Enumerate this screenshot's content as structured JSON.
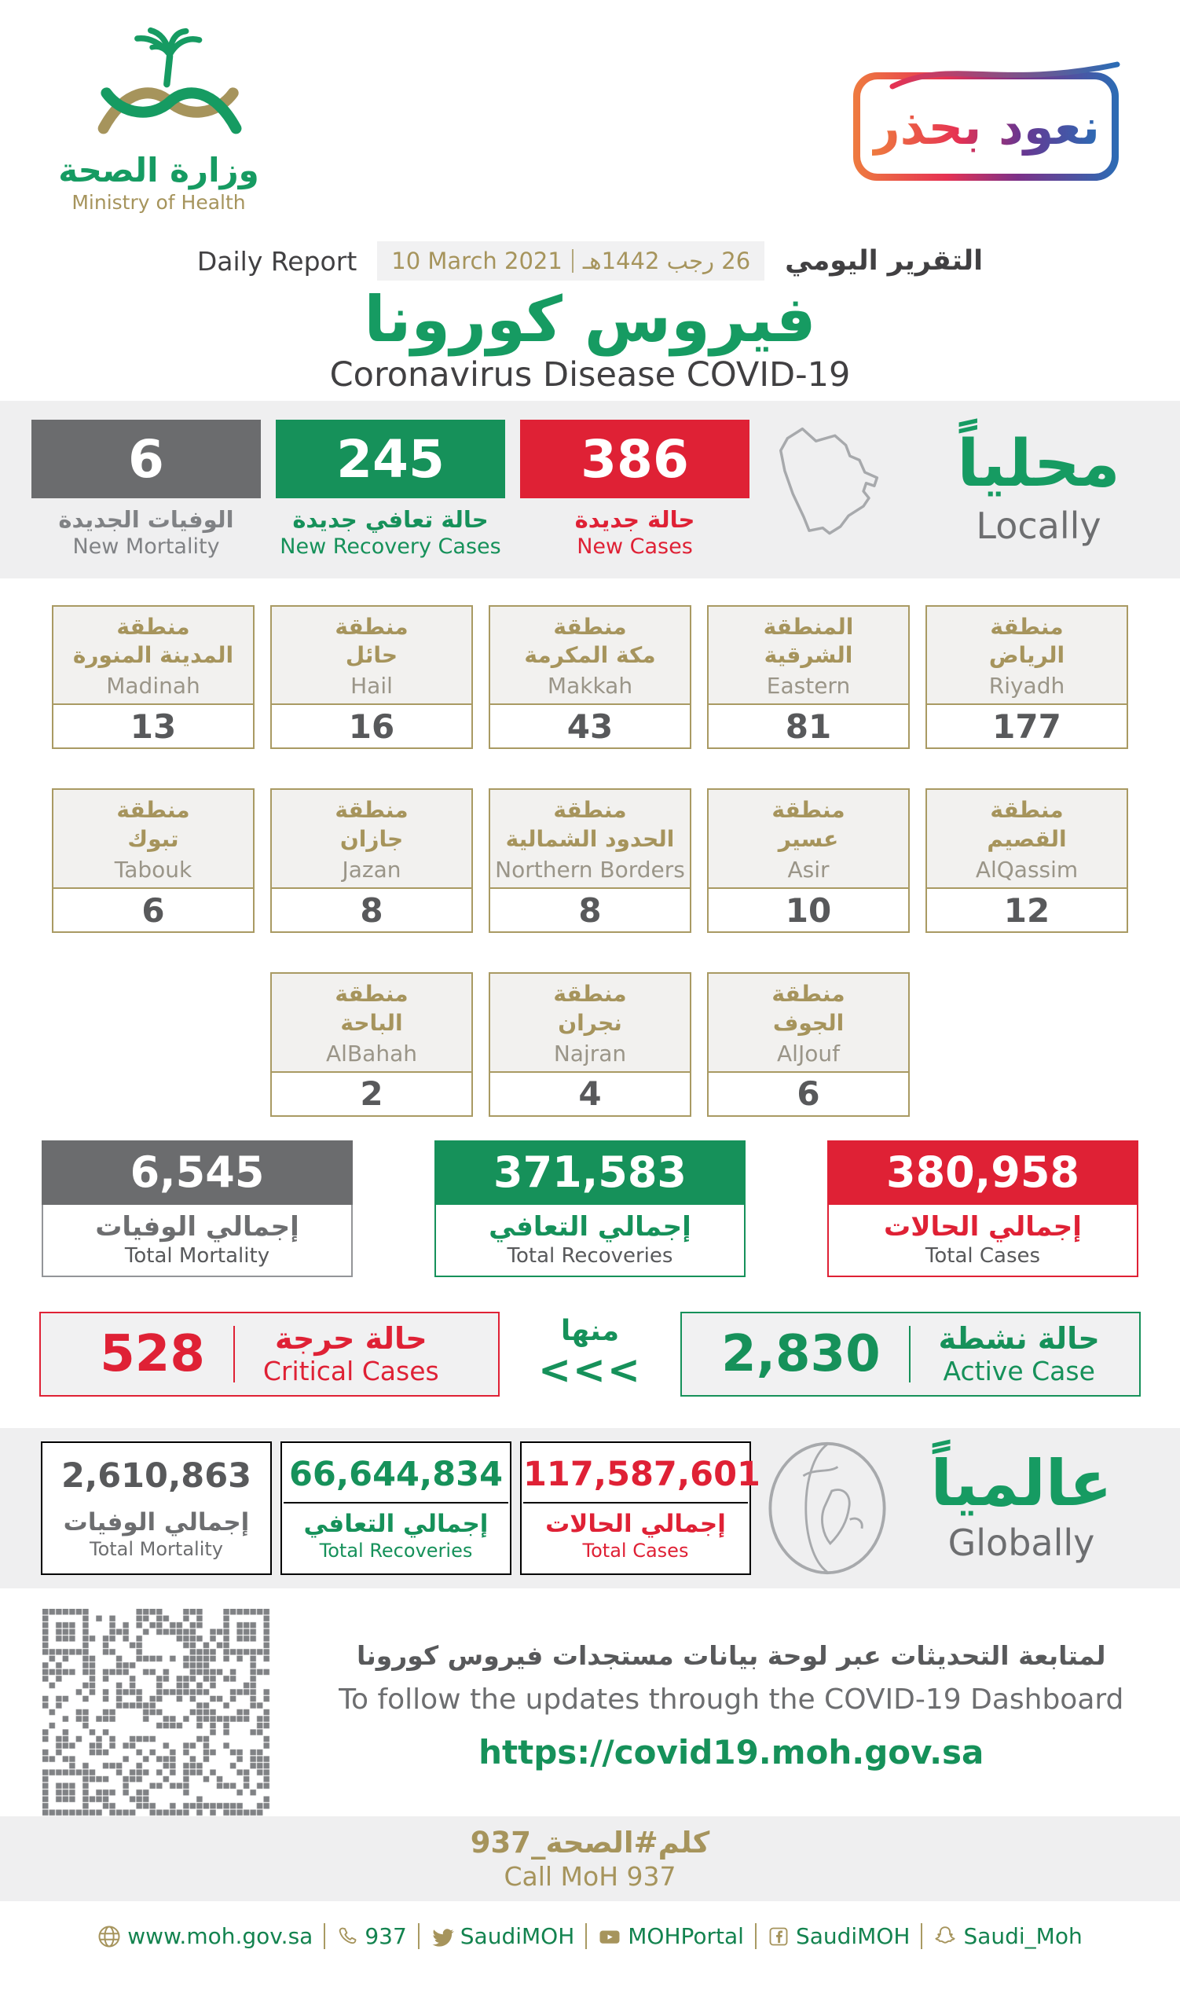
{
  "header": {
    "logo_ar": "وزارة الصحة",
    "logo_en": "Ministry of Health",
    "badge_text": "نعود بحذر",
    "report_label_en": "Daily Report",
    "report_label_ar": "التقرير اليومي",
    "date_en": "10 March 2021",
    "date_ar": "26 رجب 1442هـ",
    "title_ar": "فيروس كورونا",
    "title_en": "Coronavirus Disease COVID-19"
  },
  "locally": {
    "heading_ar": "محلياً",
    "heading_en": "Locally",
    "stats": [
      {
        "value": "6",
        "label_ar": "الوفيات الجديدة",
        "label_en": "New Mortality",
        "color": "#6b6c6e"
      },
      {
        "value": "245",
        "label_ar": "حالة تعافي جديدة",
        "label_en": "New Recovery Cases",
        "color": "#16915a"
      },
      {
        "value": "386",
        "label_ar": "حالة جديدة",
        "label_en": "New Cases",
        "color": "#df2135"
      }
    ]
  },
  "regions": {
    "rows": [
      [
        {
          "ar1": "منطقة",
          "ar2": "المدينة المنورة",
          "en": "Madinah",
          "value": "13"
        },
        {
          "ar1": "منطقة",
          "ar2": "حائل",
          "en": "Hail",
          "value": "16"
        },
        {
          "ar1": "منطقة",
          "ar2": "مكة المكرمة",
          "en": "Makkah",
          "value": "43"
        },
        {
          "ar1": "المنطقة",
          "ar2": "الشرقية",
          "en": "Eastern",
          "value": "81"
        },
        {
          "ar1": "منطقة",
          "ar2": "الرياض",
          "en": "Riyadh",
          "value": "177"
        }
      ],
      [
        {
          "ar1": "منطقة",
          "ar2": "تبوك",
          "en": "Tabouk",
          "value": "6"
        },
        {
          "ar1": "منطقة",
          "ar2": "جازان",
          "en": "Jazan",
          "value": "8"
        },
        {
          "ar1": "منطقة",
          "ar2": "الحدود الشمالية",
          "en": "Northern Borders",
          "value": "8"
        },
        {
          "ar1": "منطقة",
          "ar2": "عسير",
          "en": "Asir",
          "value": "10"
        },
        {
          "ar1": "منطقة",
          "ar2": "القصيم",
          "en": "AlQassim",
          "value": "12"
        }
      ],
      [
        {
          "ar1": "منطقة",
          "ar2": "الباحة",
          "en": "AlBahah",
          "value": "2"
        },
        {
          "ar1": "منطقة",
          "ar2": "نجران",
          "en": "Najran",
          "value": "4"
        },
        {
          "ar1": "منطقة",
          "ar2": "الجوف",
          "en": "AlJouf",
          "value": "6"
        }
      ]
    ]
  },
  "totals": [
    {
      "value": "6,545",
      "label_ar": "إجمالي الوفيات",
      "label_en": "Total Mortality"
    },
    {
      "value": "371,583",
      "label_ar": "إجمالي التعافي",
      "label_en": "Total Recoveries"
    },
    {
      "value": "380,958",
      "label_ar": "إجمالي الحالات",
      "label_en": "Total Cases"
    }
  ],
  "critical": {
    "value": "528",
    "label_ar": "حالة حرجة",
    "label_en": "Critical Cases"
  },
  "minha": {
    "label_ar": "منها",
    "chevrons": "<<<"
  },
  "active": {
    "value": "2,830",
    "label_ar": "حالة نشطة",
    "label_en": "Active Case"
  },
  "globally": {
    "heading_ar": "عالمياً",
    "heading_en": "Globally",
    "boxes": [
      {
        "value": "2,610,863",
        "label_ar": "إجمالي الوفيات",
        "label_en": "Total Mortality"
      },
      {
        "value": "66,644,834",
        "label_ar": "إجمالي التعافي",
        "label_en": "Total Recoveries"
      },
      {
        "value": "117,587,601",
        "label_ar": "إجمالي الحالات",
        "label_en": "Total Cases"
      }
    ]
  },
  "dashboard": {
    "line_ar": "لمتابعة التحديثات عبر لوحة بيانات مستجدات فيروس كورونا",
    "line_en": "To follow the updates through the COVID-19 Dashboard",
    "url": "https://covid19.moh.gov.sa"
  },
  "footer": {
    "hashtag_ar": "كلم#الصحة_937",
    "call_en": "Call MoH 937",
    "links": [
      {
        "icon": "globe-icon",
        "label": "www.moh.gov.sa"
      },
      {
        "icon": "phone-icon",
        "label": "937"
      },
      {
        "icon": "twitter-icon",
        "label": "SaudiMOH"
      },
      {
        "icon": "youtube-icon",
        "label": "MOHPortal"
      },
      {
        "icon": "facebook-icon",
        "label": "SaudiMOH"
      },
      {
        "icon": "snapchat-icon",
        "label": "Saudi_Moh"
      }
    ]
  },
  "colors": {
    "green": "#16915a",
    "red": "#df2135",
    "gray_box": "#6b6c6e",
    "text_gray": "#58595b",
    "gold": "#a6945c",
    "band_bg": "#efeff0",
    "link_green": "#13834f",
    "map_gray": "#a7a9ac"
  }
}
